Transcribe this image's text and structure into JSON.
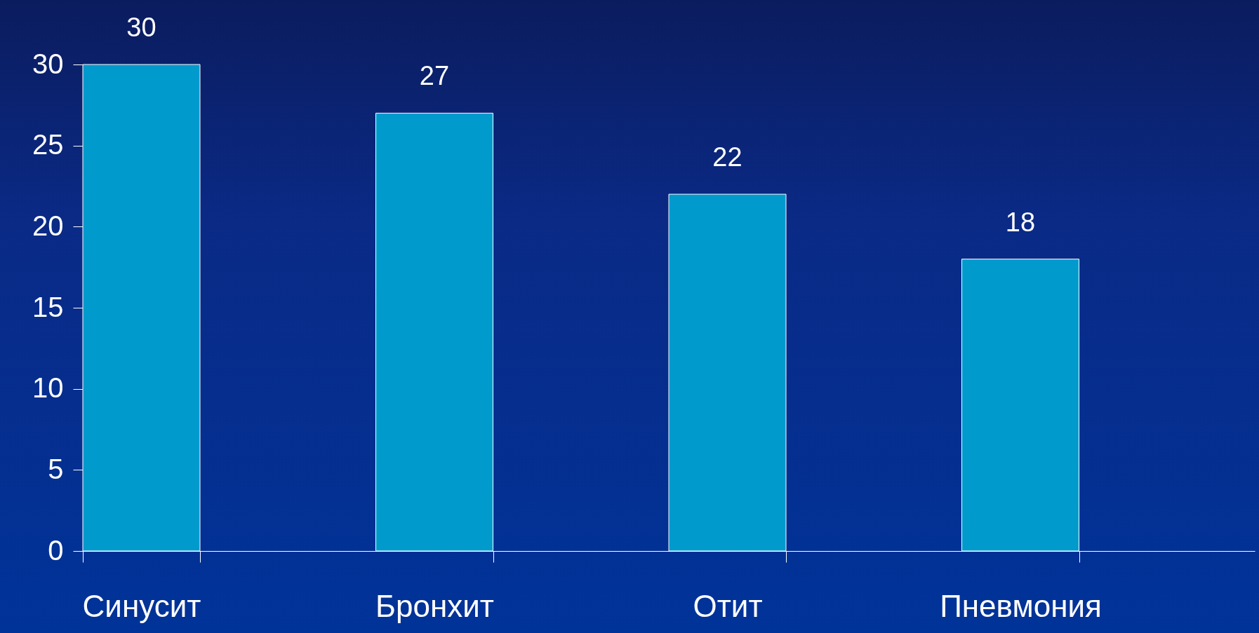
{
  "chart_data": {
    "type": "bar",
    "categories": [
      "Синусит",
      "Бронхит",
      "Отит",
      "Пневмония"
    ],
    "values": [
      30,
      27,
      22,
      18
    ],
    "color": "#009acd",
    "ylim": [
      0,
      30
    ],
    "yticks": [
      0,
      5,
      10,
      15,
      20,
      25,
      30
    ],
    "data_labels": true
  }
}
